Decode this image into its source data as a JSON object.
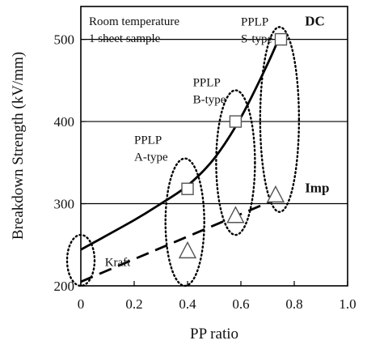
{
  "chart_data": {
    "type": "line",
    "xlabel": "PP ratio",
    "ylabel": "Breakdown Strength (kV/mm)",
    "xlim": [
      0,
      1.0
    ],
    "ylim": [
      200,
      540
    ],
    "x_ticks": [
      "0",
      "0.2",
      "0.4",
      "0.6",
      "0.8",
      "1.0"
    ],
    "y_ticks": [
      "200",
      "300",
      "400",
      "500"
    ],
    "gridlines_y": [
      300,
      400,
      500
    ],
    "conditions": [
      "Room temperature",
      "1 sheet sample"
    ],
    "series": [
      {
        "name": "DC",
        "style": "solid",
        "x": [
          0,
          0.2,
          0.3,
          0.4,
          0.5,
          0.6,
          0.7,
          0.75
        ],
        "values": [
          244,
          280,
          300,
          322,
          355,
          405,
          470,
          507
        ],
        "markers": [
          {
            "x": 0.4,
            "y": 318
          },
          {
            "x": 0.58,
            "y": 400
          },
          {
            "x": 0.75,
            "y": 500
          }
        ]
      },
      {
        "name": "Imp",
        "style": "dashed",
        "x": [
          0,
          0.75
        ],
        "values": [
          205,
          308
        ],
        "markers": [
          {
            "x": 0.4,
            "y": 242
          },
          {
            "x": 0.58,
            "y": 285
          },
          {
            "x": 0.73,
            "y": 310
          }
        ]
      }
    ],
    "material_groups": [
      {
        "label_lines": [
          "Kraft"
        ],
        "x": 0.0,
        "y_range": [
          200,
          262
        ]
      },
      {
        "label_lines": [
          "PPLP",
          "A-type"
        ],
        "x": 0.39,
        "y_range": [
          200,
          355
        ]
      },
      {
        "label_lines": [
          "PPLP",
          "B-type"
        ],
        "x": 0.58,
        "y_range": [
          262,
          438
        ]
      },
      {
        "label_lines": [
          "PPLP",
          "S-type"
        ],
        "x": 0.745,
        "y_range": [
          290,
          515
        ]
      }
    ]
  }
}
